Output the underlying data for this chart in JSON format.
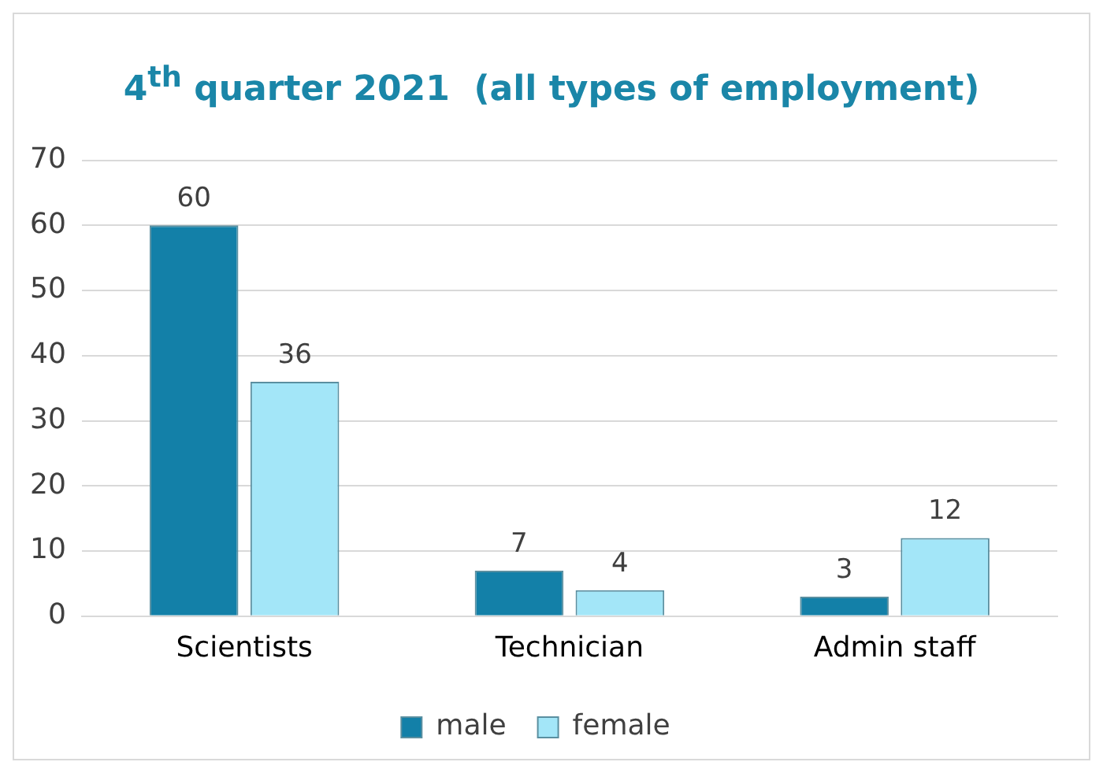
{
  "chart_data": {
    "type": "bar",
    "title": "4$^{th}$ quarter 2021  (all types of employment)",
    "categories": [
      "Scientists",
      "Technician",
      "Admin staff"
    ],
    "series": [
      {
        "name": "male",
        "color": "#1380a8",
        "values": [
          60,
          7,
          3
        ]
      },
      {
        "name": "female",
        "color": "#a3e6f8",
        "values": [
          36,
          4,
          12
        ]
      }
    ],
    "ylim": [
      0,
      70
    ],
    "yticks": [
      0,
      10,
      20,
      30,
      40,
      50,
      60,
      70
    ],
    "grid": "y",
    "legend": "bottom",
    "data_labels": true
  }
}
